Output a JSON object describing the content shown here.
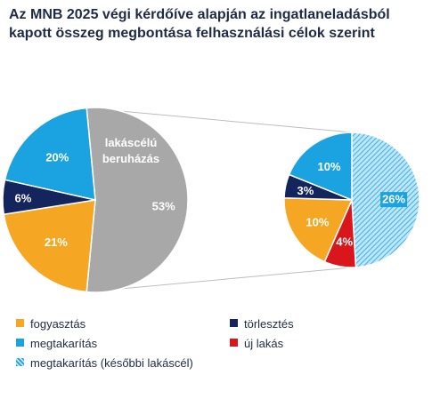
{
  "chart_data": {
    "type": "pie",
    "title_line1": "Az MNB 2025 végi kérdőíve alapján az ingatlaneladásból",
    "title_line2": "kapott összeg megbontása felhasználási célok szerint",
    "main_pie": {
      "slices": [
        {
          "label": "lakáscélú beruházás",
          "label_line1": "lakáscélú",
          "label_line2": "beruházás",
          "value": 53,
          "text": "53%",
          "color": "#a8a8a8"
        },
        {
          "label": "fogyasztás",
          "value": 21,
          "text": "21%",
          "color": "#f5a623"
        },
        {
          "label": "törlesztés",
          "value": 6,
          "text": "6%",
          "color": "#14245c"
        },
        {
          "label": "megtakarítás",
          "value": 20,
          "text": "20%",
          "color": "#1aa3e0"
        }
      ]
    },
    "detail_pie": {
      "slices": [
        {
          "label": "megtakarítás (későbbi lakáscél)",
          "value": 26,
          "text": "26%",
          "color": "#8fd3f2",
          "hatched": true
        },
        {
          "label": "új lakás",
          "value": 4,
          "text": "4%",
          "color": "#d9161c"
        },
        {
          "label": "fogyasztás",
          "value": 10,
          "text": "10%",
          "color": "#f5a623"
        },
        {
          "label": "törlesztés",
          "value": 3,
          "text": "3%",
          "color": "#14245c"
        },
        {
          "label": "megtakarítás",
          "value": 10,
          "text": "10%",
          "color": "#1aa3e0"
        }
      ]
    },
    "legend": [
      {
        "label": "fogyasztás",
        "color": "#f5a623"
      },
      {
        "label": "törlesztés",
        "color": "#14245c"
      },
      {
        "label": "megtakarítás",
        "color": "#1aa3e0"
      },
      {
        "label": "új lakás",
        "color": "#d9161c"
      },
      {
        "label": "megtakarítás (későbbi lakáscél)",
        "color": "#8fd3f2",
        "hatched": true
      }
    ]
  }
}
